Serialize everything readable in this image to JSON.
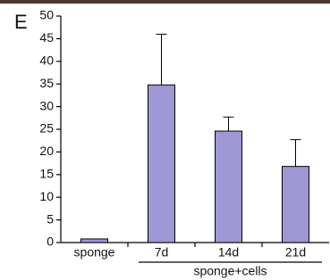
{
  "panel_label": "E",
  "chart_data": {
    "type": "bar",
    "categories": [
      "sponge",
      "7d",
      "14d",
      "21d"
    ],
    "values": [
      0.8,
      34.8,
      24.6,
      16.8
    ],
    "errors": [
      null,
      11.2,
      3.1,
      5.9
    ],
    "color": "#9e98d4",
    "ylim": [
      0,
      50
    ],
    "yticks": [
      0,
      5,
      10,
      15,
      20,
      25,
      30,
      35,
      40,
      45,
      50
    ],
    "group_label": "sponge+cells"
  }
}
